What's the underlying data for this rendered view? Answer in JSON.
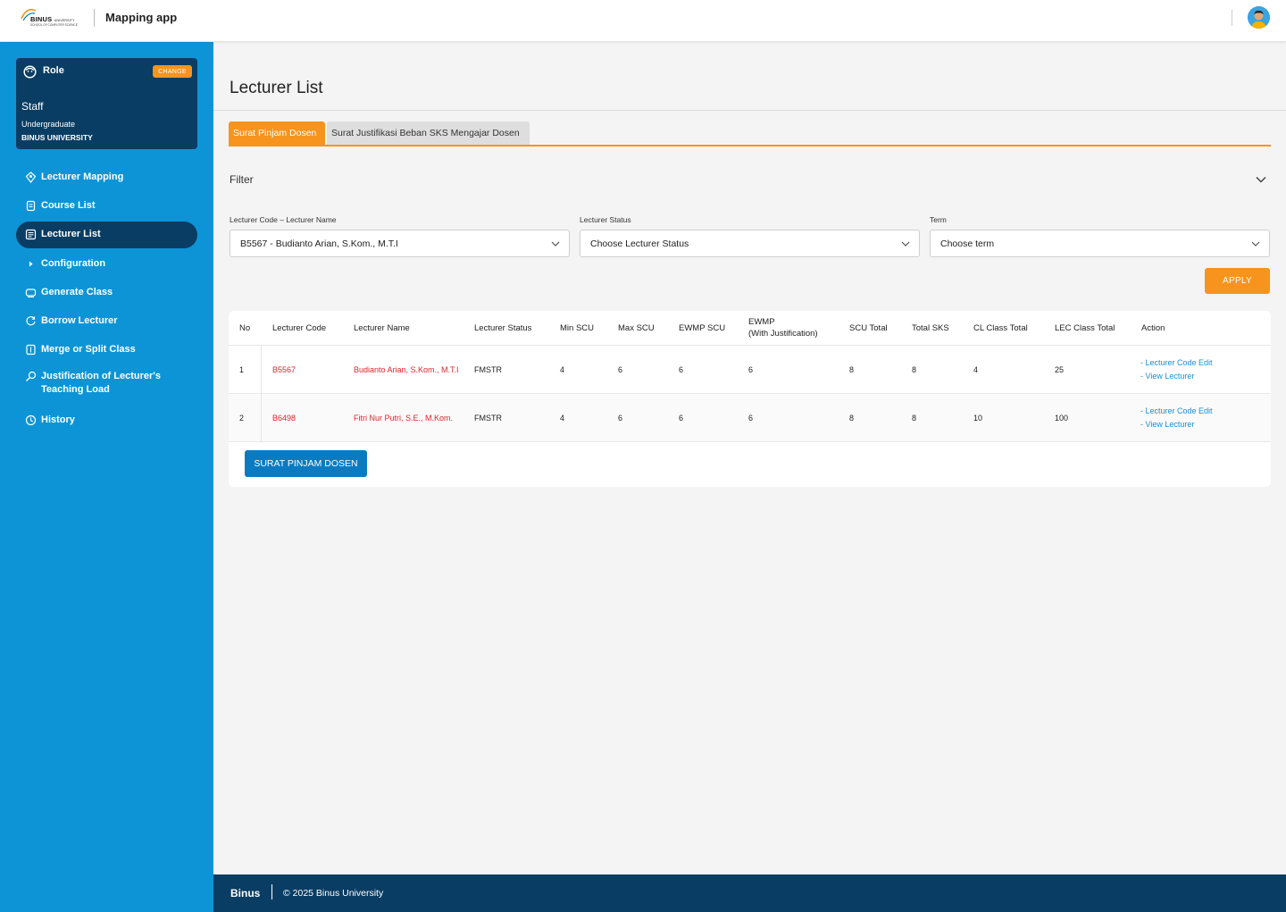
{
  "header": {
    "logo_text": "BINUS",
    "logo_suffix": "UNIVERSITY",
    "logo_sub": "SCHOOL OF COMPUTER SCIENCE",
    "app_title": "Mapping app"
  },
  "role": {
    "label": "Role",
    "change_label": "CHANGE",
    "name": "Staff",
    "level": "Undergraduate",
    "org": "BINUS UNIVERSITY"
  },
  "sidebar": {
    "items": [
      {
        "label": "Lecturer Mapping",
        "icon": "map-pin-icon"
      },
      {
        "label": "Course List",
        "icon": "book-icon"
      },
      {
        "label": "Lecturer List",
        "icon": "list-icon",
        "active": true
      },
      {
        "label": "Configuration",
        "icon": "chevron-right-icon"
      },
      {
        "label": "Generate Class",
        "icon": "class-icon"
      },
      {
        "label": "Borrow Lecturer",
        "icon": "refresh-icon"
      },
      {
        "label": "Merge or Split Class",
        "icon": "merge-icon"
      },
      {
        "label": "Justification of Lecturer's Teaching Load",
        "icon": "justification-icon"
      },
      {
        "label": "History",
        "icon": "history-icon"
      }
    ]
  },
  "main": {
    "title": "Lecturer List",
    "tabs": [
      {
        "label": "Surat Pinjam Dosen",
        "active": true
      },
      {
        "label": "Surat Justifikasi Beban SKS Mengajar Dosen",
        "active": false
      }
    ],
    "filter": {
      "label": "Filter",
      "fields": [
        {
          "label": "Lecturer Code – Lecturer Name",
          "value": "B5567 - Budianto Arian, S.Kom., M.T.I"
        },
        {
          "label": "Lecturer Status",
          "value": "Choose Lecturer Status"
        },
        {
          "label": "Term",
          "value": "Choose term"
        }
      ],
      "apply_label": "APPLY"
    },
    "table": {
      "columns": [
        "No",
        "Lecturer Code",
        "Lecturer Name",
        "Lecturer Status",
        "Min SCU",
        "Max SCU",
        "EWMP SCU",
        "EWMP\n(With Justification)",
        "SCU Total",
        "Total SKS",
        "CL Class Total",
        "LEC Class Total",
        "Action"
      ],
      "rows": [
        {
          "no": "1",
          "code": "B5567",
          "name": "Budianto Arian, S.Kom., M.T.I",
          "status": "FMSTR",
          "min_scu": "4",
          "max_scu": "6",
          "ewmp_scu": "6",
          "ewmp_just": "6",
          "scu_total": "8",
          "total_sks": "8",
          "cl_total": "4",
          "lec_total": "25"
        },
        {
          "no": "2",
          "code": "B6498",
          "name": "Fitri Nur Putri, S.E., M.Kom.",
          "status": "FMSTR",
          "min_scu": "4",
          "max_scu": "6",
          "ewmp_scu": "6",
          "ewmp_just": "6",
          "scu_total": "8",
          "total_sks": "8",
          "cl_total": "10",
          "lec_total": "100"
        }
      ],
      "action_edit": "- Lecturer Code Edit",
      "action_view": "- View Lecturer"
    },
    "surat_button": "SURAT PINJAM DOSEN"
  },
  "footer": {
    "brand": "Binus",
    "copyright": "© 2025 Binus University"
  },
  "colors": {
    "sidebar": "#0d94d6",
    "navy": "#0a3d63",
    "accent": "#f7941d",
    "link": "#1c8fd2",
    "danger": "#e8232a"
  }
}
